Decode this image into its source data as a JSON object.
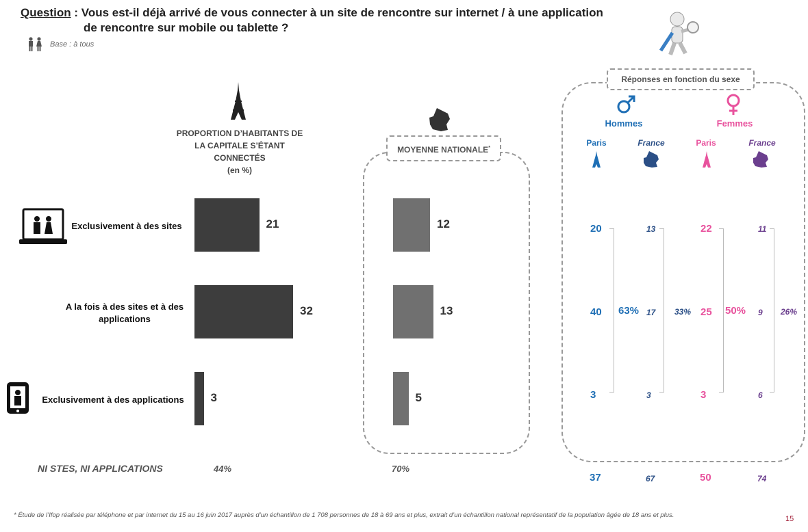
{
  "question": {
    "lead": "Question",
    "line1": " : Vous est-il déjà arrivé de vous connecter à un site de rencontre sur internet / à une application",
    "line2": "de rencontre sur mobile ou tablette ?"
  },
  "base": "Base : à tous",
  "left_header": [
    "PROPORTION D’HABITANTS DE",
    "LA CAPITALE S’ÉTANT",
    "CONNECTÉS",
    "(en %)"
  ],
  "national_label": "MOYENNE NATIONALE",
  "national_mark": "*",
  "gender_box_label": "Réponses en fonction du sexe",
  "hommes": "Hommes",
  "femmes": "Femmes",
  "paris": "Paris",
  "france": "France",
  "ni_label": "NI STES, NI APPLICATIONS",
  "ni_paris": "44%",
  "ni_national": "70%",
  "footnote": "* Étude de l’Ifop réalisée par téléphone et par internet du 15 au 16 juin 2017 auprès d’un échantillon de 1 708 personnes de 18 à 69 ans et plus, extrait d’un échantillon national représentatif de la population âgée de 18 ans et plus.",
  "page_number": "15",
  "colors": {
    "paris_bar": "#3d3d3d",
    "national_bar": "#707070",
    "hommes": "#1f6fb5",
    "femmes": "#e8529d",
    "hommes_france": "#2b4f86",
    "femmes_france": "#6b3f8e"
  },
  "chart_data": {
    "type": "bar",
    "categories": [
      "Exclusivement à des sites",
      "A la fois à des sites et à des applications",
      "Exclusivement à des applications"
    ],
    "series": [
      {
        "name": "",
        "values": [
          21,
          32,
          3
        ]
      },
      {
        "name": "MOYENNE NATIONALE",
        "values": [
          12,
          13,
          5
        ]
      }
    ],
    "gender": {
      "hommes_paris": [
        20,
        40,
        3
      ],
      "hommes_france": [
        13,
        17,
        3
      ],
      "femmes_paris": [
        22,
        25,
        3
      ],
      "femmes_france": [
        11,
        9,
        6
      ],
      "hommes_paris_total": "63%",
      "hommes_france_total": "33%",
      "femmes_paris_total": "50%",
      "femmes_france_total": "26%",
      "ni": {
        "hommes_paris": 37,
        "hommes_france": 67,
        "femmes_paris": 50,
        "femmes_france": 74
      }
    }
  }
}
